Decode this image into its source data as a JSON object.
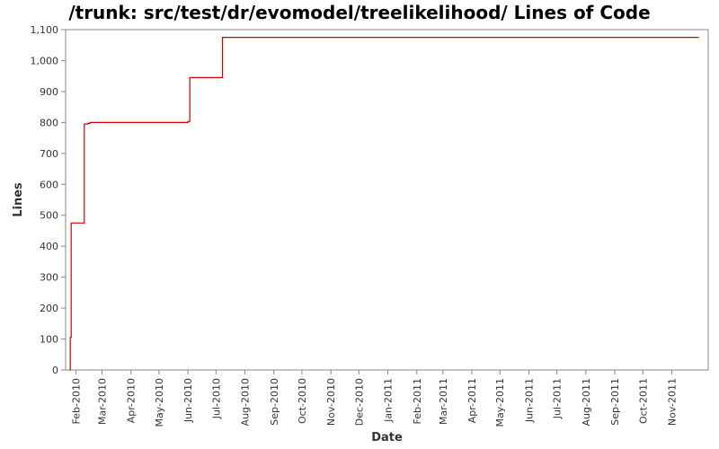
{
  "chart_data": {
    "type": "line",
    "title": "/trunk: src/test/dr/evomodel/treelikelihood/ Lines of Code",
    "xlabel": "Date",
    "ylabel": "Lines",
    "x_axis_type": "date",
    "xlim": [
      "2010-01-21",
      "2011-12-10"
    ],
    "ylim": [
      0,
      1100
    ],
    "y_ticks": [
      {
        "value": 0,
        "label": "0"
      },
      {
        "value": 100,
        "label": "100"
      },
      {
        "value": 200,
        "label": "200"
      },
      {
        "value": 300,
        "label": "300"
      },
      {
        "value": 400,
        "label": "400"
      },
      {
        "value": 500,
        "label": "500"
      },
      {
        "value": 600,
        "label": "600"
      },
      {
        "value": 700,
        "label": "700"
      },
      {
        "value": 800,
        "label": "800"
      },
      {
        "value": 900,
        "label": "900"
      },
      {
        "value": 1000,
        "label": "1,000"
      },
      {
        "value": 1100,
        "label": "1,100"
      }
    ],
    "x_ticks": [
      {
        "date": "2010-02-01",
        "label": "Feb-2010"
      },
      {
        "date": "2010-03-01",
        "label": "Mar-2010"
      },
      {
        "date": "2010-04-01",
        "label": "Apr-2010"
      },
      {
        "date": "2010-05-01",
        "label": "May-2010"
      },
      {
        "date": "2010-06-01",
        "label": "Jun-2010"
      },
      {
        "date": "2010-07-01",
        "label": "Jul-2010"
      },
      {
        "date": "2010-08-01",
        "label": "Aug-2010"
      },
      {
        "date": "2010-09-01",
        "label": "Sep-2010"
      },
      {
        "date": "2010-10-01",
        "label": "Oct-2010"
      },
      {
        "date": "2010-11-01",
        "label": "Nov-2010"
      },
      {
        "date": "2010-12-01",
        "label": "Dec-2010"
      },
      {
        "date": "2011-01-01",
        "label": "Jan-2011"
      },
      {
        "date": "2011-02-01",
        "label": "Feb-2011"
      },
      {
        "date": "2011-03-01",
        "label": "Mar-2011"
      },
      {
        "date": "2011-04-01",
        "label": "Apr-2011"
      },
      {
        "date": "2011-05-01",
        "label": "May-2011"
      },
      {
        "date": "2011-06-01",
        "label": "Jun-2011"
      },
      {
        "date": "2011-07-01",
        "label": "Jul-2011"
      },
      {
        "date": "2011-08-01",
        "label": "Aug-2011"
      },
      {
        "date": "2011-09-01",
        "label": "Sep-2011"
      },
      {
        "date": "2011-10-01",
        "label": "Oct-2011"
      },
      {
        "date": "2011-11-01",
        "label": "Nov-2011"
      }
    ],
    "grid": false,
    "series": [
      {
        "color": "#cc0000",
        "step": true,
        "points": [
          {
            "x": "2010-01-25",
            "y": 0
          },
          {
            "x": "2010-01-26",
            "y": 105
          },
          {
            "x": "2010-01-27",
            "y": 475
          },
          {
            "x": "2010-02-10",
            "y": 795
          },
          {
            "x": "2010-02-14",
            "y": 797
          },
          {
            "x": "2010-02-16",
            "y": 800
          },
          {
            "x": "2010-06-01",
            "y": 803
          },
          {
            "x": "2010-06-03",
            "y": 945
          },
          {
            "x": "2010-07-08",
            "y": 1075
          },
          {
            "x": "2011-11-30",
            "y": 1075
          }
        ]
      }
    ],
    "colors": {
      "line": "#cc0000",
      "axis": "#888888",
      "text": "#333333"
    }
  }
}
